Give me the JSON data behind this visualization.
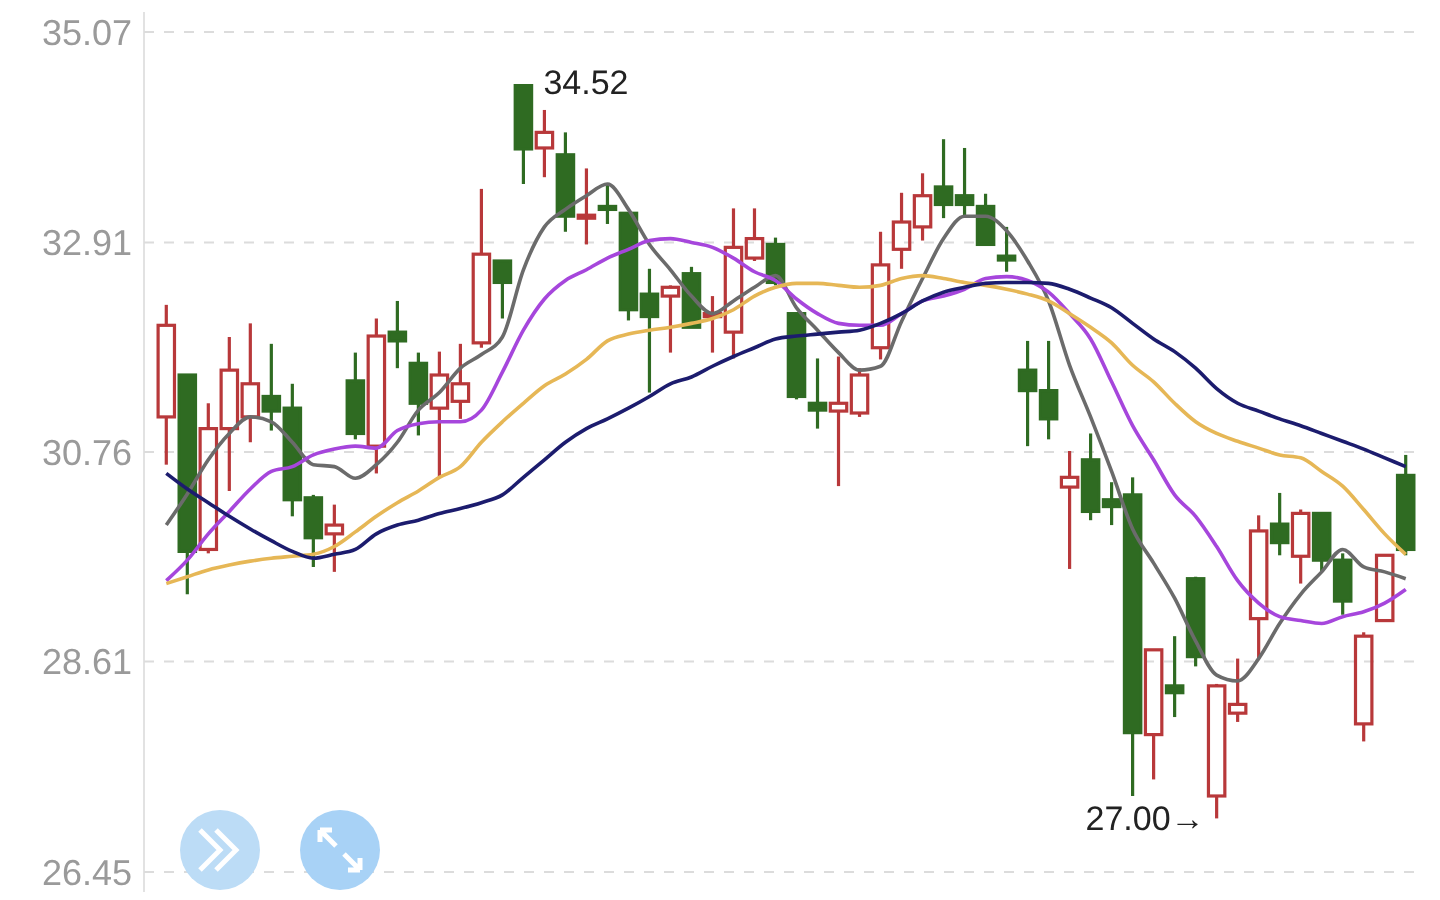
{
  "chart_data": {
    "type": "candlestick",
    "categories": [
      null,
      null,
      null,
      null,
      null,
      null,
      null,
      null,
      null,
      null,
      null,
      null,
      null,
      null,
      null,
      null,
      null,
      null,
      null,
      null,
      null,
      null,
      null,
      null,
      null,
      null,
      null,
      null,
      null,
      null,
      null,
      null,
      null,
      null,
      null,
      null,
      null,
      null,
      null,
      null,
      null,
      null,
      null,
      null,
      null,
      null,
      null,
      null,
      null,
      null,
      null,
      null,
      null,
      null,
      null,
      null,
      null,
      null,
      null,
      null
    ],
    "ohlc": [
      [
        31.12,
        32.27,
        30.63,
        32.06
      ],
      [
        31.55,
        31.55,
        29.3,
        29.74
      ],
      [
        29.76,
        31.26,
        29.72,
        31.0
      ],
      [
        31.0,
        31.94,
        30.36,
        31.6
      ],
      [
        31.12,
        32.08,
        30.86,
        31.46
      ],
      [
        31.33,
        31.87,
        30.98,
        31.18
      ],
      [
        31.21,
        31.46,
        30.1,
        30.27
      ],
      [
        30.29,
        30.32,
        29.58,
        29.88
      ],
      [
        29.92,
        30.22,
        29.53,
        30.01
      ],
      [
        31.49,
        31.78,
        30.89,
        30.95
      ],
      [
        30.82,
        32.13,
        30.54,
        31.95
      ],
      [
        31.99,
        32.31,
        31.62,
        31.9
      ],
      [
        31.67,
        31.78,
        30.93,
        31.26
      ],
      [
        31.21,
        31.79,
        30.5,
        31.55
      ],
      [
        31.28,
        31.87,
        31.1,
        31.46
      ],
      [
        31.88,
        33.46,
        31.83,
        32.79
      ],
      [
        32.72,
        32.72,
        32.13,
        32.5
      ],
      [
        34.52,
        34.52,
        33.51,
        33.87
      ],
      [
        33.88,
        34.27,
        33.58,
        34.04
      ],
      [
        33.81,
        34.04,
        33.02,
        33.18
      ],
      [
        33.18,
        33.67,
        32.89,
        33.19
      ],
      [
        33.28,
        33.51,
        33.1,
        33.26
      ],
      [
        33.21,
        33.21,
        32.11,
        32.22
      ],
      [
        32.38,
        32.64,
        31.37,
        32.15
      ],
      [
        32.36,
        32.47,
        31.78,
        32.45
      ],
      [
        32.59,
        32.66,
        32.04,
        32.04
      ],
      [
        32.15,
        32.36,
        31.78,
        32.18
      ],
      [
        31.99,
        33.26,
        31.72,
        32.86
      ],
      [
        32.75,
        33.26,
        32.72,
        32.95
      ],
      [
        32.89,
        32.96,
        32.47,
        32.5
      ],
      [
        32.18,
        32.18,
        31.3,
        31.33
      ],
      [
        31.26,
        31.72,
        31.0,
        31.19
      ],
      [
        31.18,
        31.74,
        30.41,
        31.26
      ],
      [
        31.16,
        31.62,
        31.12,
        31.55
      ],
      [
        31.83,
        33.02,
        31.71,
        32.68
      ],
      [
        32.84,
        33.42,
        32.64,
        33.12
      ],
      [
        33.07,
        33.62,
        32.93,
        33.39
      ],
      [
        33.48,
        33.97,
        33.16,
        33.3
      ],
      [
        33.39,
        33.88,
        33.18,
        33.3
      ],
      [
        33.28,
        33.41,
        32.89,
        32.89
      ],
      [
        32.77,
        33.07,
        32.61,
        32.73
      ],
      [
        31.6,
        31.9,
        30.82,
        31.39
      ],
      [
        31.39,
        31.9,
        30.89,
        31.1
      ],
      [
        30.4,
        30.77,
        29.56,
        30.5
      ],
      [
        30.68,
        30.95,
        30.06,
        30.15
      ],
      [
        30.27,
        30.45,
        30.01,
        30.2
      ],
      [
        30.32,
        30.5,
        27.23,
        27.88
      ],
      [
        27.86,
        28.73,
        27.4,
        28.73
      ],
      [
        28.36,
        28.87,
        28.04,
        28.29
      ],
      [
        29.46,
        29.48,
        28.56,
        28.66
      ],
      [
        27.23,
        28.38,
        27.0,
        28.36
      ],
      [
        28.08,
        28.64,
        27.99,
        28.17
      ],
      [
        29.05,
        30.11,
        28.64,
        29.95
      ],
      [
        30.02,
        30.34,
        29.7,
        29.83
      ],
      [
        29.69,
        30.17,
        29.41,
        30.13
      ],
      [
        30.13,
        30.13,
        29.53,
        29.65
      ],
      [
        29.65,
        29.72,
        29.09,
        29.23
      ],
      [
        27.97,
        28.91,
        27.79,
        28.87
      ],
      [
        29.03,
        29.7,
        29.03,
        29.7
      ],
      [
        30.52,
        30.73,
        29.7,
        29.76
      ]
    ],
    "colors": [
      "#b8383a",
      "#2f6b22",
      "#b8383a",
      "#b8383a",
      "#b8383a",
      "#2f6b22",
      "#2f6b22",
      "#2f6b22",
      "#b8383a",
      "#2f6b22",
      "#b8383a",
      "#2f6b22",
      "#2f6b22",
      "#b8383a",
      "#b8383a",
      "#b8383a",
      "#2f6b22",
      "#2f6b22",
      "#b8383a",
      "#2f6b22",
      "#b8383a",
      "#2f6b22",
      "#2f6b22",
      "#2f6b22",
      "#b8383a",
      "#2f6b22",
      "#b8383a",
      "#b8383a",
      "#b8383a",
      "#2f6b22",
      "#2f6b22",
      "#2f6b22",
      "#b8383a",
      "#b8383a",
      "#b8383a",
      "#b8383a",
      "#b8383a",
      "#2f6b22",
      "#2f6b22",
      "#2f6b22",
      "#2f6b22",
      "#2f6b22",
      "#2f6b22",
      "#b8383a",
      "#2f6b22",
      "#2f6b22",
      "#2f6b22",
      "#b8383a",
      "#2f6b22",
      "#2f6b22",
      "#b8383a",
      "#b8383a",
      "#b8383a",
      "#2f6b22",
      "#b8383a",
      "#2f6b22",
      "#2f6b22",
      "#b8383a",
      "#b8383a",
      "#2f6b22"
    ],
    "series": [
      {
        "type": "line",
        "color": "#6b6b6b",
        "values": [
          30.01,
          30.33,
          30.68,
          30.95,
          31.12,
          31.07,
          30.86,
          30.63,
          30.61,
          30.49,
          30.63,
          30.86,
          31.19,
          31.37,
          31.62,
          31.76,
          31.94,
          32.63,
          33.07,
          33.25,
          33.39,
          33.51,
          33.25,
          32.89,
          32.63,
          32.36,
          32.18,
          32.31,
          32.45,
          32.57,
          32.24,
          32.01,
          31.78,
          31.6,
          31.64,
          32.1,
          32.54,
          32.95,
          33.18,
          33.18,
          33.03,
          32.72,
          32.31,
          31.65,
          31.12,
          30.56,
          29.97,
          29.62,
          29.26,
          28.82,
          28.47,
          28.41,
          28.64,
          29.0,
          29.3,
          29.53,
          29.76,
          29.58,
          29.53,
          29.46
        ]
      },
      {
        "type": "line",
        "color": "#a646dc",
        "values": [
          29.44,
          29.65,
          29.92,
          30.15,
          30.38,
          30.56,
          30.61,
          30.73,
          30.79,
          30.82,
          30.8,
          30.98,
          31.05,
          31.07,
          31.07,
          31.19,
          31.58,
          32.01,
          32.33,
          32.52,
          32.63,
          32.75,
          32.84,
          32.93,
          32.95,
          32.91,
          32.86,
          32.75,
          32.61,
          32.52,
          32.33,
          32.18,
          32.08,
          32.06,
          32.06,
          32.18,
          32.31,
          32.36,
          32.43,
          32.54,
          32.56,
          32.52,
          32.4,
          32.18,
          31.92,
          31.48,
          31.03,
          30.68,
          30.32,
          30.1,
          29.79,
          29.44,
          29.21,
          29.07,
          29.03,
          29.0,
          29.07,
          29.12,
          29.21,
          29.35
        ]
      },
      {
        "type": "line",
        "color": "#e6b756",
        "values": [
          29.41,
          29.48,
          29.55,
          29.6,
          29.64,
          29.67,
          29.69,
          29.71,
          29.79,
          29.94,
          30.1,
          30.24,
          30.36,
          30.5,
          30.61,
          30.86,
          31.07,
          31.26,
          31.44,
          31.56,
          31.71,
          31.9,
          31.97,
          32.01,
          32.04,
          32.08,
          32.13,
          32.22,
          32.36,
          32.45,
          32.49,
          32.49,
          32.47,
          32.45,
          32.47,
          32.54,
          32.57,
          32.54,
          32.5,
          32.47,
          32.43,
          32.38,
          32.31,
          32.18,
          32.04,
          31.88,
          31.65,
          31.48,
          31.26,
          31.07,
          30.95,
          30.87,
          30.8,
          30.73,
          30.7,
          30.56,
          30.41,
          30.17,
          29.92,
          29.71
        ]
      },
      {
        "type": "line",
        "color": "#1c1c6e",
        "values": [
          30.54,
          30.38,
          30.24,
          30.1,
          29.97,
          29.85,
          29.74,
          29.67,
          29.71,
          29.76,
          29.92,
          30.01,
          30.06,
          30.13,
          30.18,
          30.24,
          30.32,
          30.5,
          30.68,
          30.86,
          31.0,
          31.1,
          31.21,
          31.33,
          31.46,
          31.53,
          31.64,
          31.74,
          31.83,
          31.92,
          31.95,
          31.97,
          31.99,
          32.01,
          32.08,
          32.18,
          32.31,
          32.4,
          32.45,
          32.49,
          32.5,
          32.5,
          32.49,
          32.43,
          32.34,
          32.24,
          32.08,
          31.92,
          31.79,
          31.62,
          31.41,
          31.26,
          31.18,
          31.1,
          31.03,
          30.95,
          30.87,
          30.79,
          30.7,
          30.61
        ]
      }
    ],
    "ylim": [
      26.45,
      35.07
    ],
    "yticks": [
      26.45,
      28.61,
      30.76,
      32.91,
      35.07
    ],
    "grid": "y",
    "marker": "none",
    "line_style": "solid",
    "annotations": [
      "34.52",
      "27.00→"
    ]
  }
}
